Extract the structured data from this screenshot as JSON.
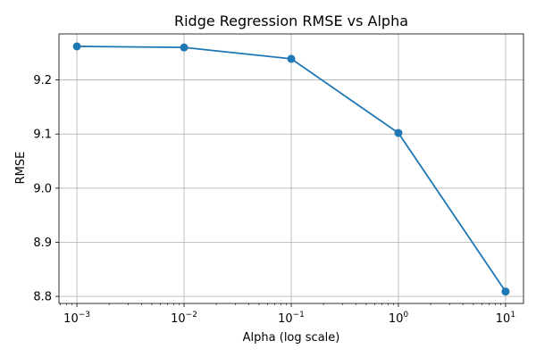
{
  "chart_data": {
    "type": "line",
    "title": "Ridge Regression RMSE vs Alpha",
    "xlabel": "Alpha (log scale)",
    "ylabel": "RMSE",
    "x_scale": "log",
    "x": [
      0.001,
      0.01,
      0.1,
      1,
      10
    ],
    "series": [
      {
        "values": [
          9.262,
          9.26,
          9.239,
          9.102,
          8.809
        ]
      }
    ],
    "xlim": [
      0.00068,
      14.7
    ],
    "ylim": [
      8.787,
      9.285
    ],
    "x_ticks": [
      {
        "value": 0.001,
        "base": "10",
        "exp": "−3"
      },
      {
        "value": 0.01,
        "base": "10",
        "exp": "−2"
      },
      {
        "value": 0.1,
        "base": "10",
        "exp": "−1"
      },
      {
        "value": 1,
        "base": "10",
        "exp": "0"
      },
      {
        "value": 10,
        "base": "10",
        "exp": "1"
      }
    ],
    "y_ticks": [
      {
        "value": 8.8,
        "label": "8.8"
      },
      {
        "value": 8.9,
        "label": "8.9"
      },
      {
        "value": 9.0,
        "label": "9.0"
      },
      {
        "value": 9.1,
        "label": "9.1"
      },
      {
        "value": 9.2,
        "label": "9.2"
      }
    ],
    "grid": true,
    "line_color": "#1f77b4",
    "marker": "circle"
  }
}
